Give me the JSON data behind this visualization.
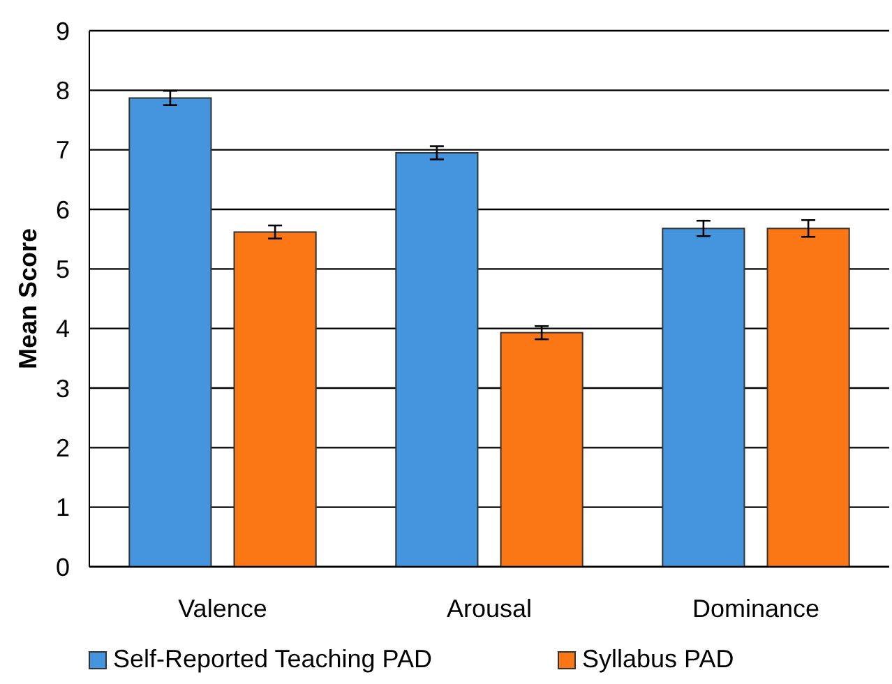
{
  "chart_data": {
    "type": "bar",
    "ylabel": "Mean Score",
    "categories": [
      "Valence",
      "Arousal",
      "Dominance"
    ],
    "series": [
      {
        "name": "Self-Reported Teaching PAD",
        "color": "#4495de",
        "values": [
          7.87,
          6.95,
          5.68
        ],
        "errors": [
          0.12,
          0.11,
          0.13
        ]
      },
      {
        "name": "Syllabus PAD",
        "color": "#fb7614",
        "values": [
          5.62,
          3.93,
          5.68
        ],
        "errors": [
          0.11,
          0.11,
          0.14
        ]
      }
    ],
    "ylim": [
      0,
      9
    ],
    "yticks": [
      0,
      1,
      2,
      3,
      4,
      5,
      6,
      7,
      8,
      9
    ],
    "grid": "y",
    "legend": "bottom"
  }
}
